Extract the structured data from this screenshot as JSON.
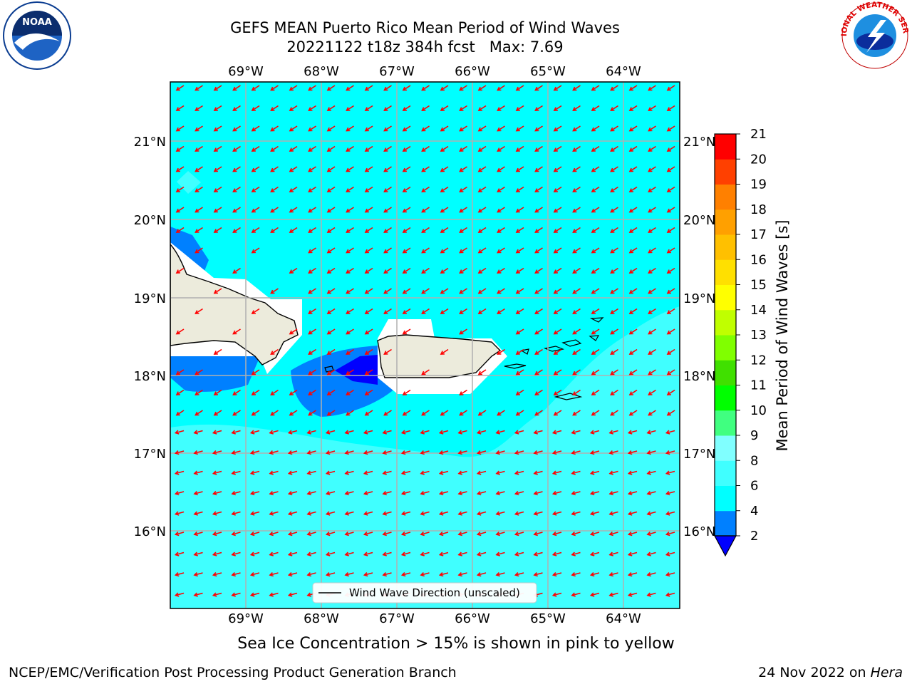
{
  "header": {
    "title_line1": "GEFS MEAN Puerto Rico Mean Period of Wind Waves",
    "title_line2": "20221122 t18z 384h fcst   Max: 7.69"
  },
  "logos": {
    "left": "NOAA",
    "right": "NATIONAL WEATHER SERVICE"
  },
  "map": {
    "lon_labels": [
      "69°W",
      "68°W",
      "67°W",
      "66°W",
      "65°W",
      "64°W"
    ],
    "lat_labels": [
      "21°N",
      "20°N",
      "19°N",
      "18°N",
      "17°N",
      "16°N"
    ],
    "legend_label": "Wind Wave Direction (unscaled)",
    "background_color": "#00ffff",
    "land_color": "#ecebdc",
    "arrow_color": "#ff0000"
  },
  "colorbar": {
    "label": "Mean Period of Wind Waves [s]",
    "ticks": [
      "2",
      "4",
      "6",
      "8",
      "9",
      "10",
      "11",
      "12",
      "13",
      "14",
      "15",
      "16",
      "17",
      "18",
      "19",
      "20",
      "21"
    ],
    "colors": [
      "#0000ff",
      "#0080ff",
      "#00ffff",
      "#40ffff",
      "#80ffff",
      "#40ff80",
      "#00ff00",
      "#40e000",
      "#80ff00",
      "#c0ff00",
      "#ffff00",
      "#ffe000",
      "#ffc000",
      "#ffa000",
      "#ff8000",
      "#ff4000",
      "#ff0000"
    ]
  },
  "footer": {
    "ice_note": "Sea Ice Concentration > 15% is shown in pink to yellow",
    "credit": "NCEP/EMC/Verification Post Processing Product Generation Branch",
    "date_prefix": "24 Nov 2022 on ",
    "date_machine": "Hera"
  }
}
